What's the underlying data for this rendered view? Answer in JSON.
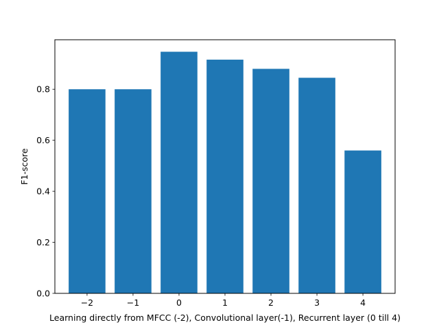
{
  "chart_data": {
    "type": "bar",
    "x": [
      -2,
      -1,
      0,
      1,
      2,
      3,
      4
    ],
    "x_tick_labels": [
      "−2",
      "−1",
      "0",
      "1",
      "2",
      "3",
      "4"
    ],
    "values": [
      0.8,
      0.8,
      0.947,
      0.916,
      0.88,
      0.845,
      0.56
    ],
    "xlabel": "Learning directly from MFCC (-2), Convolutional layer(-1), Recurrent layer (0 till 4)",
    "ylabel": "F1-score",
    "xlim": [
      -2.7,
      4.7
    ],
    "ylim": [
      0,
      0.994
    ],
    "y_ticks": [
      0.0,
      0.2,
      0.4,
      0.6,
      0.8
    ],
    "y_tick_labels": [
      "0.0",
      "0.2",
      "0.4",
      "0.6",
      "0.8"
    ],
    "bar_width": 0.8,
    "bar_color": "#1f77b4",
    "grid": false,
    "legend": "none"
  }
}
